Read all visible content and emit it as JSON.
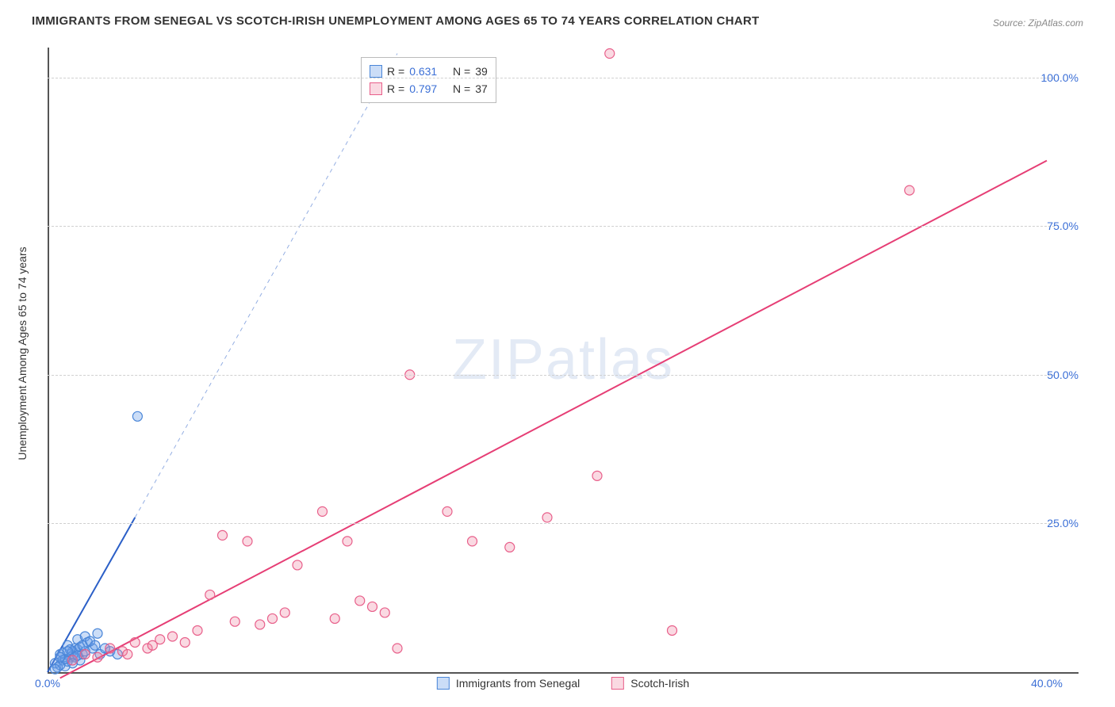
{
  "title": "IMMIGRANTS FROM SENEGAL VS SCOTCH-IRISH UNEMPLOYMENT AMONG AGES 65 TO 74 YEARS CORRELATION CHART",
  "source": "Source: ZipAtlas.com",
  "watermark_a": "ZIP",
  "watermark_b": "atlas",
  "y_axis_title": "Unemployment Among Ages 65 to 74 years",
  "chart": {
    "type": "scatter",
    "xlim": [
      0,
      40
    ],
    "ylim": [
      0,
      105
    ],
    "x_ticks": [
      0,
      40
    ],
    "x_tick_labels": [
      "0.0%",
      "40.0%"
    ],
    "y_ticks": [
      25,
      50,
      75,
      100
    ],
    "y_tick_labels": [
      "25.0%",
      "50.0%",
      "75.0%",
      "100.0%"
    ],
    "background_color": "#ffffff",
    "grid_color": "#d0d0d0",
    "marker_size": 6,
    "marker_stroke_width": 1.2,
    "line_width": 2,
    "series": [
      {
        "name": "Immigrants from Senegal",
        "color_fill": "rgba(106,158,232,0.35)",
        "color_stroke": "#4a86d8",
        "line_color": "#2b5fc7",
        "r": "0.631",
        "n": "39",
        "trend_line": {
          "x1": 0,
          "y1": 0,
          "x2": 3.5,
          "y2": 26
        },
        "trend_dash": {
          "x1": 3.5,
          "y1": 26,
          "x2": 14,
          "y2": 104
        },
        "points": [
          [
            0.3,
            1.5
          ],
          [
            0.5,
            3.0
          ],
          [
            0.6,
            2.0
          ],
          [
            0.8,
            4.5
          ],
          [
            1.0,
            3.5
          ],
          [
            1.2,
            5.5
          ],
          [
            1.3,
            2.0
          ],
          [
            1.5,
            6.0
          ],
          [
            0.7,
            1.0
          ],
          [
            0.9,
            2.5
          ],
          [
            1.1,
            4.0
          ],
          [
            1.4,
            3.0
          ],
          [
            1.6,
            5.0
          ],
          [
            1.8,
            4.0
          ],
          [
            2.0,
            6.5
          ],
          [
            0.4,
            0.8
          ],
          [
            0.6,
            3.2
          ],
          [
            0.8,
            1.8
          ],
          [
            1.0,
            2.8
          ],
          [
            1.2,
            3.8
          ],
          [
            0.5,
            1.2
          ],
          [
            0.7,
            2.2
          ],
          [
            0.9,
            3.8
          ],
          [
            1.1,
            2.5
          ],
          [
            1.3,
            4.2
          ],
          [
            1.5,
            3.5
          ],
          [
            1.7,
            5.2
          ],
          [
            1.9,
            4.5
          ],
          [
            2.1,
            3.0
          ],
          [
            2.3,
            4.0
          ],
          [
            2.5,
            3.5
          ],
          [
            0.3,
            0.5
          ],
          [
            0.5,
            2.5
          ],
          [
            0.8,
            3.5
          ],
          [
            1.0,
            1.5
          ],
          [
            1.2,
            2.8
          ],
          [
            1.4,
            4.5
          ],
          [
            2.8,
            3.0
          ],
          [
            3.6,
            43.0
          ]
        ]
      },
      {
        "name": "Scotch-Irish",
        "color_fill": "rgba(240,130,160,0.30)",
        "color_stroke": "#e85f8a",
        "line_color": "#e63e75",
        "r": "0.797",
        "n": "37",
        "trend_line": {
          "x1": 0.5,
          "y1": -1,
          "x2": 40,
          "y2": 86
        },
        "trend_dash": null,
        "points": [
          [
            1.0,
            2.0
          ],
          [
            1.5,
            3.0
          ],
          [
            2.0,
            2.5
          ],
          [
            2.5,
            4.0
          ],
          [
            3.0,
            3.5
          ],
          [
            3.5,
            5.0
          ],
          [
            4.0,
            4.0
          ],
          [
            4.5,
            5.5
          ],
          [
            5.0,
            6.0
          ],
          [
            5.5,
            5.0
          ],
          [
            6.0,
            7.0
          ],
          [
            6.5,
            13.0
          ],
          [
            7.0,
            23.0
          ],
          [
            8.0,
            22.0
          ],
          [
            8.5,
            8.0
          ],
          [
            9.0,
            9.0
          ],
          [
            9.5,
            10.0
          ],
          [
            10.0,
            18.0
          ],
          [
            11.0,
            27.0
          ],
          [
            11.5,
            9.0
          ],
          [
            12.0,
            22.0
          ],
          [
            12.5,
            12.0
          ],
          [
            13.0,
            11.0
          ],
          [
            13.5,
            10.0
          ],
          [
            14.0,
            4.0
          ],
          [
            14.5,
            50.0
          ],
          [
            16.0,
            27.0
          ],
          [
            17.0,
            22.0
          ],
          [
            18.5,
            21.0
          ],
          [
            20.0,
            26.0
          ],
          [
            22.0,
            33.0
          ],
          [
            25.0,
            7.0
          ],
          [
            22.5,
            104.0
          ],
          [
            34.5,
            81.0
          ],
          [
            3.2,
            3.0
          ],
          [
            4.2,
            4.5
          ],
          [
            7.5,
            8.5
          ]
        ]
      }
    ]
  },
  "legend_top": {
    "r_label": "R =",
    "n_label": "N ="
  },
  "legend_bottom": {
    "items": [
      "Immigrants from Senegal",
      "Scotch-Irish"
    ]
  }
}
